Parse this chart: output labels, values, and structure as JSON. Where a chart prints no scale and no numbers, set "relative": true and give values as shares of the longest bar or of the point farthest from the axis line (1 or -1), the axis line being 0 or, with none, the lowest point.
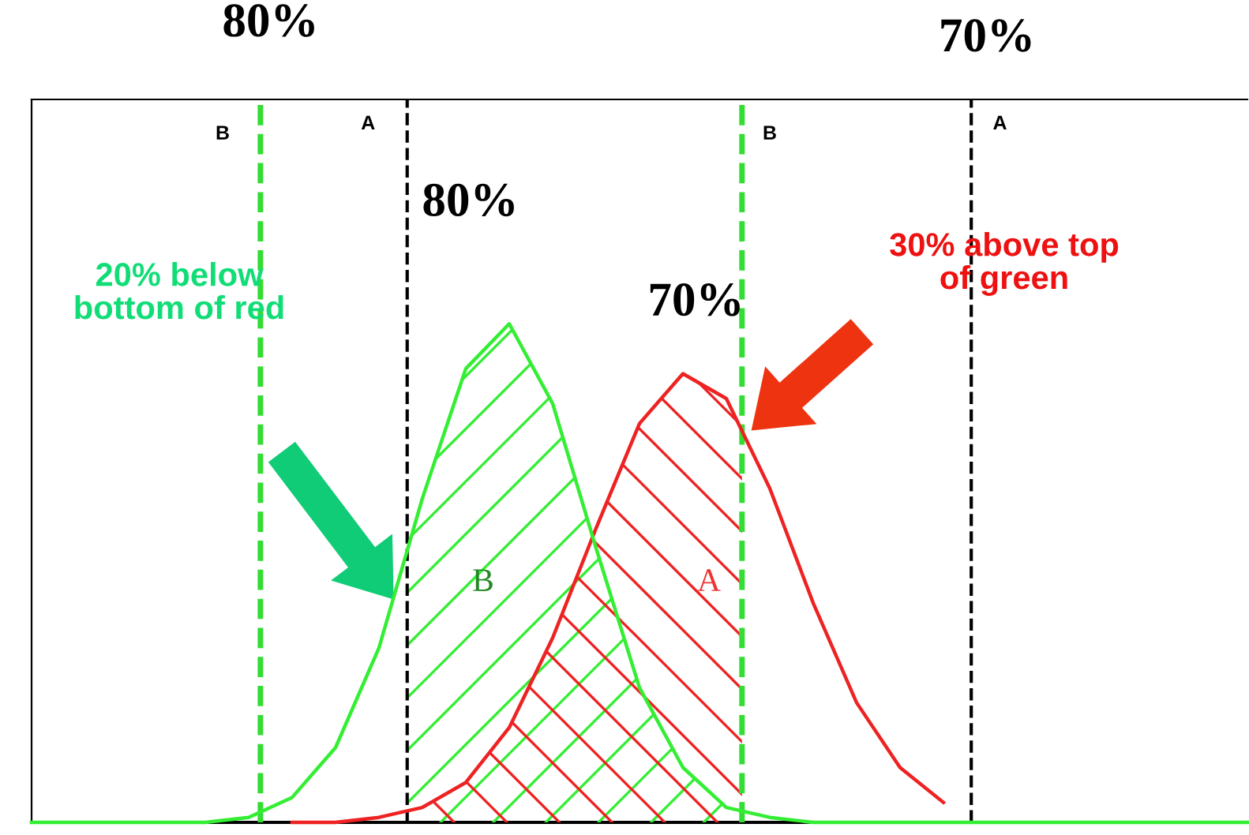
{
  "chart_data": {
    "type": "line",
    "relative": true,
    "grid": false,
    "marker": "none",
    "line_style": "solid",
    "categories": [
      null,
      null,
      null,
      null,
      null,
      null,
      null,
      null,
      null,
      null,
      null,
      null,
      null,
      null,
      null,
      null,
      null,
      null,
      null,
      null,
      null,
      null,
      null,
      null,
      null,
      null,
      null,
      null,
      null
    ],
    "series": [
      {
        "color": "#33ee33",
        "values": [
          0,
          0,
          0,
          0,
          0,
          0.01,
          0.05,
          0.15,
          0.35,
          0.65,
          0.91,
          1,
          0.84,
          0.55,
          0.27,
          0.11,
          0.03,
          0.01,
          0,
          0,
          0,
          0,
          0,
          0,
          0,
          0,
          0,
          0,
          0
        ]
      },
      {
        "color": "#ee2222",
        "values": [
          null,
          null,
          null,
          null,
          null,
          null,
          0,
          0,
          0.01,
          0.03,
          0.08,
          0.19,
          0.37,
          0.59,
          0.8,
          0.9,
          0.85,
          0.67,
          0.44,
          0.24,
          0.11,
          0.04,
          null,
          null,
          null,
          null,
          null,
          null,
          null
        ]
      }
    ],
    "annotations": [
      "80%",
      "70%",
      "80%",
      "70%",
      "20% below\nbottom of red",
      "30% above top\nof green",
      "B",
      "A",
      "B",
      "A",
      "B",
      "A"
    ]
  }
}
